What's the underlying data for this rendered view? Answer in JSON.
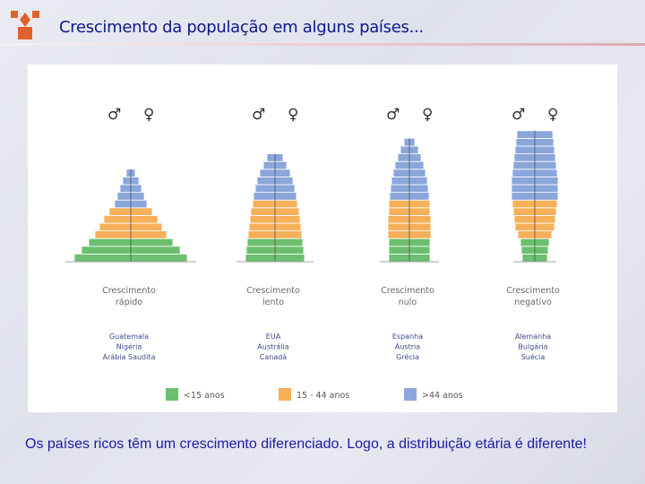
{
  "title": "Crescimento da população em alguns países...",
  "caption": "Os países ricos têm um crescimento diferenciado. Logo, a distribuição etária é diferente!",
  "colors": {
    "young": "#6bbf6e",
    "adult": "#f6b05a",
    "old": "#8aa6db",
    "title": "#0b1a8a",
    "caption": "#1a1aa5"
  },
  "male_symbol": "♂",
  "female_symbol": "♀",
  "pyramids": [
    {
      "label_line1": "Crescimento",
      "label_line2": "rápido",
      "countries": [
        "Guatemala",
        "Nigéria",
        "Arábia Saudita"
      ],
      "bands": {
        "young": 3,
        "adult": 4,
        "old": 5
      }
    },
    {
      "label_line1": "Crescimento",
      "label_line2": "lento",
      "countries": [
        "EUA",
        "Austrália",
        "Canadá"
      ],
      "bands": {
        "young": 3,
        "adult": 5,
        "old": 6
      }
    },
    {
      "label_line1": "Crescimento",
      "label_line2": "nulo",
      "countries": [
        "Espanha",
        "Áustria",
        "Grécia"
      ],
      "bands": {
        "young": 3,
        "adult": 5,
        "old": 8
      }
    },
    {
      "label_line1": "Crescimento",
      "label_line2": "negativo",
      "countries": [
        "Alemanha",
        "Bulgária",
        "Suécia"
      ],
      "bands": {
        "young": 3,
        "adult": 5,
        "old": 9
      }
    }
  ],
  "legend": [
    {
      "key": "young",
      "label": "<15 anos"
    },
    {
      "key": "adult",
      "label": "15 - 44 anos"
    },
    {
      "key": "old",
      "label": ">44 anos"
    }
  ]
}
